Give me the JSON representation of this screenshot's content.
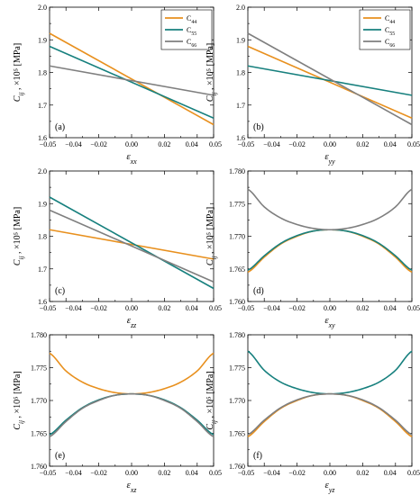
{
  "colors": {
    "C44": "#E8901E",
    "C55": "#17807E",
    "C66": "#7F7F7F"
  },
  "legend_labels": [
    "C44",
    "C55",
    "C66"
  ],
  "ylabel_text": "Cij ,  ×10⁵ [MPa]",
  "chart_data": [
    {
      "type": "line",
      "panel_label": "(a)",
      "xlabel": "εxx",
      "xlim": [
        -0.05,
        0.05
      ],
      "ylim": [
        1.6,
        2.0
      ],
      "xticks": [
        "−0.05",
        "−0.04",
        "−0.02",
        "0.00",
        "0.02",
        "0.04",
        "0.05"
      ],
      "yticks": [
        "1.6",
        "1.7",
        "1.8",
        "1.9",
        "2.0"
      ],
      "legend": true,
      "legend_position": "top-right",
      "series": [
        {
          "name": "C44",
          "x": [
            -0.05,
            0.05
          ],
          "y": [
            1.92,
            1.64
          ]
        },
        {
          "name": "C55",
          "x": [
            -0.05,
            0.05
          ],
          "y": [
            1.88,
            1.66
          ]
        },
        {
          "name": "C66",
          "x": [
            -0.05,
            0.05
          ],
          "y": [
            1.82,
            1.73
          ]
        }
      ]
    },
    {
      "type": "line",
      "panel_label": "(b)",
      "xlabel": "εyy",
      "xlim": [
        -0.05,
        0.05
      ],
      "ylim": [
        1.6,
        2.0
      ],
      "xticks": [
        "−0.05",
        "−0.04",
        "−0.02",
        "0.00",
        "0.02",
        "0.04",
        "0.05"
      ],
      "yticks": [
        "1.6",
        "1.7",
        "1.8",
        "1.9",
        "2.0"
      ],
      "legend": true,
      "legend_position": "top-right",
      "series": [
        {
          "name": "C44",
          "x": [
            -0.05,
            0.05
          ],
          "y": [
            1.88,
            1.66
          ]
        },
        {
          "name": "C55",
          "x": [
            -0.05,
            0.05
          ],
          "y": [
            1.82,
            1.73
          ]
        },
        {
          "name": "C66",
          "x": [
            -0.05,
            0.05
          ],
          "y": [
            1.92,
            1.64
          ]
        }
      ]
    },
    {
      "type": "line",
      "panel_label": "(c)",
      "xlabel": "εzz",
      "xlim": [
        -0.05,
        0.05
      ],
      "ylim": [
        1.6,
        2.0
      ],
      "xticks": [
        "−0.05",
        "−0.04",
        "−0.02",
        "0.00",
        "0.02",
        "0.04",
        "0.05"
      ],
      "yticks": [
        "1.6",
        "1.7",
        "1.8",
        "1.9",
        "2.0"
      ],
      "legend": false,
      "series": [
        {
          "name": "C44",
          "x": [
            -0.05,
            0.05
          ],
          "y": [
            1.82,
            1.73
          ]
        },
        {
          "name": "C55",
          "x": [
            -0.05,
            0.05
          ],
          "y": [
            1.92,
            1.64
          ]
        },
        {
          "name": "C66",
          "x": [
            -0.05,
            0.05
          ],
          "y": [
            1.88,
            1.66
          ]
        }
      ]
    },
    {
      "type": "line",
      "panel_label": "(d)",
      "xlabel": "εxy",
      "xlim": [
        -0.05,
        0.05
      ],
      "ylim": [
        1.76,
        1.78
      ],
      "xticks": [
        "−0.05",
        "−0.04",
        "−0.02",
        "0.00",
        "0.02",
        "0.04",
        "0.05"
      ],
      "yticks": [
        "1.760",
        "1.765",
        "1.770",
        "1.775",
        "1.780"
      ],
      "legend": false,
      "series": [
        {
          "name": "C44",
          "x": [
            -0.05,
            -0.04,
            -0.03,
            -0.02,
            -0.01,
            0.0,
            0.01,
            0.02,
            0.03,
            0.04,
            0.05
          ],
          "y": [
            1.7645,
            1.7668,
            1.7688,
            1.77,
            1.7708,
            1.771,
            1.7708,
            1.77,
            1.7688,
            1.7668,
            1.7645
          ]
        },
        {
          "name": "C55",
          "x": [
            -0.05,
            -0.04,
            -0.03,
            -0.02,
            -0.01,
            0.0,
            0.01,
            0.02,
            0.03,
            0.04,
            0.05
          ],
          "y": [
            1.7648,
            1.767,
            1.7689,
            1.7701,
            1.7708,
            1.771,
            1.7708,
            1.7701,
            1.7689,
            1.767,
            1.7648
          ]
        },
        {
          "name": "C66",
          "x": [
            -0.05,
            -0.04,
            -0.03,
            -0.02,
            -0.01,
            0.0,
            0.01,
            0.02,
            0.03,
            0.04,
            0.05
          ],
          "y": [
            1.7772,
            1.7745,
            1.7728,
            1.7718,
            1.7712,
            1.771,
            1.7712,
            1.7718,
            1.7728,
            1.7745,
            1.7772
          ]
        }
      ]
    },
    {
      "type": "line",
      "panel_label": "(e)",
      "xlabel": "εxz",
      "xlim": [
        -0.05,
        0.05
      ],
      "ylim": [
        1.76,
        1.78
      ],
      "xticks": [
        "−0.05",
        "−0.04",
        "−0.02",
        "0.00",
        "0.02",
        "0.04",
        "0.05"
      ],
      "yticks": [
        "1.760",
        "1.765",
        "1.770",
        "1.775",
        "1.780"
      ],
      "legend": false,
      "series": [
        {
          "name": "C44",
          "x": [
            -0.05,
            -0.04,
            -0.03,
            -0.02,
            -0.01,
            0.0,
            0.01,
            0.02,
            0.03,
            0.04,
            0.05
          ],
          "y": [
            1.7772,
            1.7745,
            1.7728,
            1.7718,
            1.7712,
            1.771,
            1.7712,
            1.7718,
            1.7728,
            1.7745,
            1.7772
          ]
        },
        {
          "name": "C55",
          "x": [
            -0.05,
            -0.04,
            -0.03,
            -0.02,
            -0.01,
            0.0,
            0.01,
            0.02,
            0.03,
            0.04,
            0.05
          ],
          "y": [
            1.7648,
            1.767,
            1.7689,
            1.7701,
            1.7708,
            1.771,
            1.7708,
            1.7701,
            1.7689,
            1.767,
            1.7648
          ]
        },
        {
          "name": "C66",
          "x": [
            -0.05,
            -0.04,
            -0.03,
            -0.02,
            -0.01,
            0.0,
            0.01,
            0.02,
            0.03,
            0.04,
            0.05
          ],
          "y": [
            1.7645,
            1.7668,
            1.7688,
            1.77,
            1.7708,
            1.771,
            1.7708,
            1.77,
            1.7688,
            1.7668,
            1.7645
          ]
        }
      ]
    },
    {
      "type": "line",
      "panel_label": "(f)",
      "xlabel": "εyz",
      "xlim": [
        -0.05,
        0.05
      ],
      "ylim": [
        1.76,
        1.78
      ],
      "xticks": [
        "−0.05",
        "−0.04",
        "−0.02",
        "0.00",
        "0.02",
        "0.04",
        "0.05"
      ],
      "yticks": [
        "1.760",
        "1.765",
        "1.770",
        "1.775",
        "1.780"
      ],
      "legend": false,
      "series": [
        {
          "name": "C44",
          "x": [
            -0.05,
            -0.04,
            -0.03,
            -0.02,
            -0.01,
            0.0,
            0.01,
            0.02,
            0.03,
            0.04,
            0.05
          ],
          "y": [
            1.7645,
            1.7668,
            1.7688,
            1.77,
            1.7708,
            1.771,
            1.7708,
            1.77,
            1.7688,
            1.7668,
            1.7645
          ]
        },
        {
          "name": "C55",
          "x": [
            -0.05,
            -0.04,
            -0.03,
            -0.02,
            -0.01,
            0.0,
            0.01,
            0.02,
            0.03,
            0.04,
            0.05
          ],
          "y": [
            1.7775,
            1.7746,
            1.7728,
            1.7718,
            1.7712,
            1.771,
            1.7712,
            1.7718,
            1.7728,
            1.7746,
            1.7775
          ]
        },
        {
          "name": "C66",
          "x": [
            -0.05,
            -0.04,
            -0.03,
            -0.02,
            -0.01,
            0.0,
            0.01,
            0.02,
            0.03,
            0.04,
            0.05
          ],
          "y": [
            1.7648,
            1.767,
            1.7689,
            1.7701,
            1.7708,
            1.771,
            1.7708,
            1.7701,
            1.7689,
            1.767,
            1.7648
          ]
        }
      ]
    }
  ]
}
